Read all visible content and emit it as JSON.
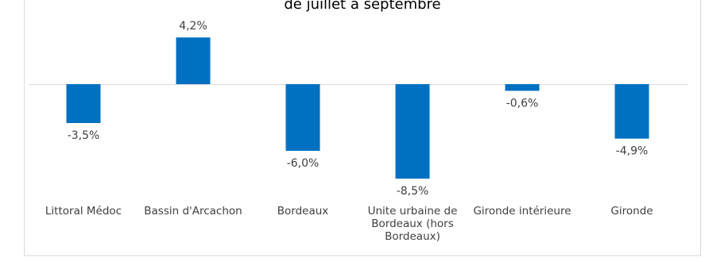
{
  "chart_data": {
    "type": "bar",
    "title": "de juillet à septembre",
    "categories": [
      "Littoral Médoc",
      "Bassin d'Arcachon",
      "Bordeaux",
      "Unite urbaine de Bordeaux (hors Bordeaux)",
      "Gironde intérieure",
      "Gironde"
    ],
    "values": [
      -3.5,
      4.2,
      -6.0,
      -8.5,
      -0.6,
      -4.9
    ],
    "value_labels": [
      "-3,5%",
      "4,2%",
      "-6,0%",
      "-8,5%",
      "-0,6%",
      "-4,9%"
    ],
    "color": "#0070c0"
  }
}
